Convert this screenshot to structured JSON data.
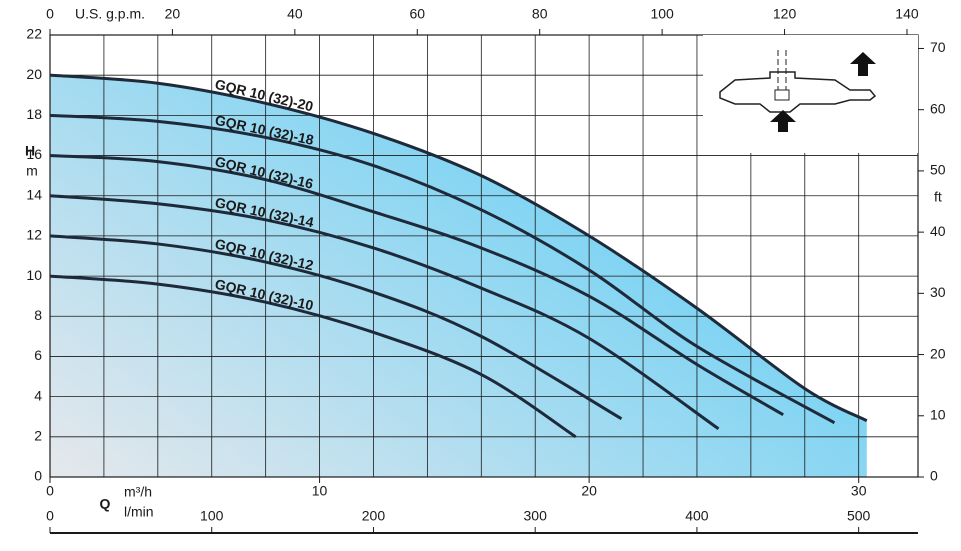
{
  "chart_data": {
    "type": "line",
    "xlabel": "m³/h",
    "xlabel_symbol": "Q",
    "ylabel": "H",
    "ylabel_unit": "m",
    "y2label": "ft",
    "xlim": [
      0,
      32.2
    ],
    "xticks": [
      0,
      10,
      20,
      30
    ],
    "xgrid": [
      0,
      2,
      4,
      6,
      8,
      10,
      12,
      14,
      16,
      18,
      20,
      22,
      24,
      26,
      28,
      30
    ],
    "ylim": [
      0,
      22
    ],
    "yticks": [
      0,
      2,
      4,
      6,
      8,
      10,
      12,
      14,
      16,
      18,
      20,
      22
    ],
    "y2lim": [
      0,
      72.2
    ],
    "y2ticks": [
      0,
      10,
      20,
      30,
      40,
      50,
      60,
      70
    ],
    "top_axis": {
      "label": "U.S. g.p.m.",
      "lim": [
        0,
        141.8
      ],
      "ticks": [
        0,
        20,
        40,
        60,
        80,
        100,
        120,
        140
      ]
    },
    "bottom_axis": {
      "label": "l/min",
      "lim": [
        0,
        536.7
      ],
      "ticks": [
        0,
        100,
        200,
        300,
        400,
        500
      ]
    },
    "grid": true,
    "area_colors": [
      "#e6e8ec",
      "#5ccdf6"
    ],
    "line_color": "#1e2a3a",
    "series": [
      {
        "name": "GQR 10 (32)-20",
        "x": [
          0,
          4,
          8,
          12,
          16,
          20,
          24,
          28,
          30.3
        ],
        "values": [
          20,
          19.6,
          18.6,
          17.1,
          15.0,
          12.0,
          8.4,
          4.4,
          2.8
        ]
      },
      {
        "name": "GQR 10 (32)-18",
        "x": [
          0,
          4,
          8,
          12,
          16,
          20,
          24,
          29.1
        ],
        "values": [
          18,
          17.7,
          16.9,
          15.5,
          13.3,
          10.3,
          6.5,
          2.7
        ]
      },
      {
        "name": "GQR 10 (32)-16",
        "x": [
          0,
          4,
          8,
          12,
          16,
          20,
          24,
          27.2
        ],
        "values": [
          16,
          15.7,
          14.8,
          13.2,
          11.4,
          9.0,
          5.6,
          3.1
        ]
      },
      {
        "name": "GQR 10 (32)-14",
        "x": [
          0,
          4,
          8,
          12,
          16,
          20,
          24.8
        ],
        "values": [
          14,
          13.6,
          12.8,
          11.4,
          9.4,
          6.9,
          2.4
        ]
      },
      {
        "name": "GQR 10 (32)-12",
        "x": [
          0,
          4,
          8,
          12,
          16,
          21.2
        ],
        "values": [
          12,
          11.6,
          10.7,
          9.2,
          7.0,
          2.9
        ]
      },
      {
        "name": "GQR 10 (32)-10",
        "x": [
          0,
          4,
          8,
          12,
          16,
          19.5
        ],
        "values": [
          10,
          9.6,
          8.7,
          7.2,
          5.1,
          2.0
        ]
      }
    ]
  }
}
